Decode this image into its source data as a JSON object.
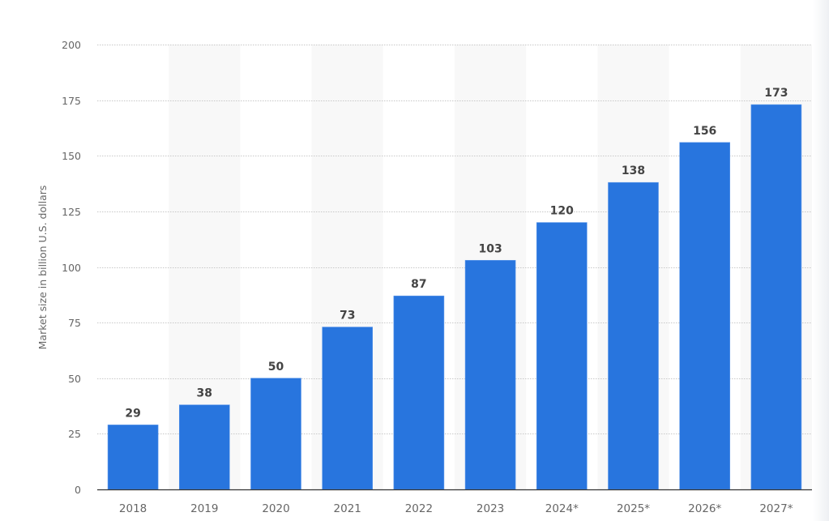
{
  "chart_data": {
    "type": "bar",
    "title": "",
    "xlabel": "",
    "ylabel": "Market size in billion U.S. dollars",
    "categories": [
      "2018",
      "2019",
      "2020",
      "2021",
      "2022",
      "2023",
      "2024*",
      "2025*",
      "2026*",
      "2027*"
    ],
    "values": [
      29,
      38,
      50,
      73,
      87,
      103,
      120,
      138,
      156,
      173
    ],
    "data_labels": [
      "29",
      "38",
      "50",
      "73",
      "87",
      "103",
      "120",
      "138",
      "156",
      "173"
    ],
    "ylim": [
      0,
      200
    ],
    "yticks": [
      0,
      25,
      50,
      75,
      100,
      125,
      150,
      175,
      200
    ],
    "grid": true,
    "legend": null,
    "colors": {
      "bar": "#2875de",
      "band": "#f8f8f8",
      "grid": "#c8c8c8",
      "axis": "#333333",
      "tick_text": "#666666",
      "label_text": "#444444"
    }
  }
}
